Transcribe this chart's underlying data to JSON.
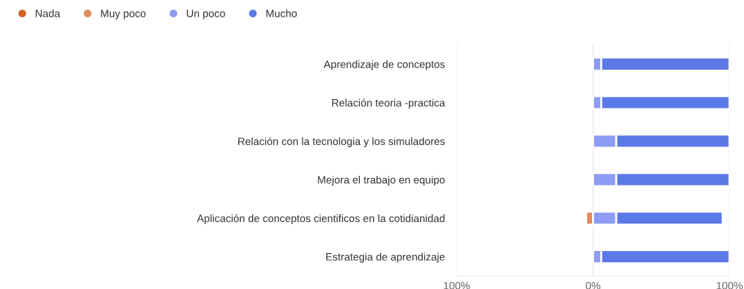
{
  "chart_data": {
    "type": "bar",
    "orientation": "horizontal",
    "stacked": true,
    "legend": "top left",
    "grid": "x",
    "categories": [
      "Aprendizaje de conceptos",
      "Relación teoria -practica",
      "Relación con la tecnologia y los simuladores",
      "Mejora el trabajo en equipo",
      "Aplicación de conceptos cientificos en la cotidianidad",
      "Estrategia de aprendizaje"
    ],
    "series": [
      {
        "name": "Nada",
        "color": "#d2612c",
        "values": [
          0,
          0,
          0,
          0,
          0,
          0
        ]
      },
      {
        "name": "Muy poco",
        "color": "#e08c5c",
        "values": [
          0,
          0,
          0,
          0,
          -5,
          0
        ]
      },
      {
        "name": "Un poco",
        "color": "#8d9cf4",
        "values": [
          6,
          6,
          17,
          17,
          17,
          6
        ]
      },
      {
        "name": "Mucho",
        "color": "#5c79e8",
        "values": [
          94,
          94,
          83,
          83,
          78,
          94
        ]
      }
    ],
    "xlim": [
      -100,
      100
    ],
    "xticks": [
      {
        "value": -100,
        "label": "100%"
      },
      {
        "value": 0,
        "label": "0%"
      },
      {
        "value": 100,
        "label": "100%"
      }
    ]
  }
}
